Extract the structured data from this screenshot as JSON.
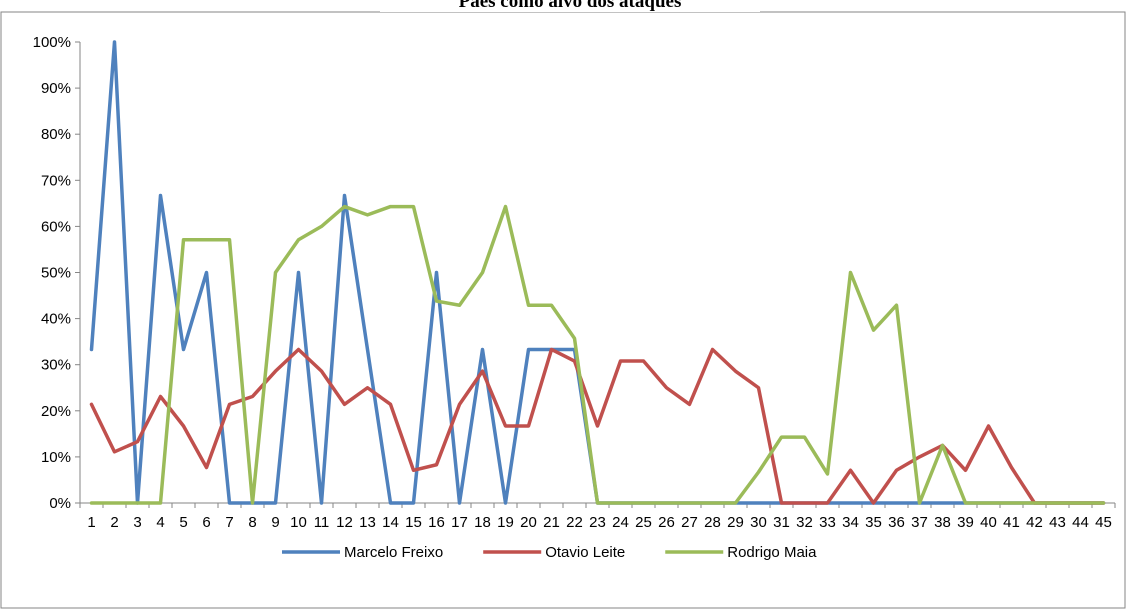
{
  "chart_data": {
    "type": "line",
    "title": "Paes como alvo dos ataques",
    "xlabel": "",
    "ylabel": "",
    "ylim": [
      0,
      1
    ],
    "y_ticks": [
      "0%",
      "10%",
      "20%",
      "30%",
      "40%",
      "50%",
      "60%",
      "70%",
      "80%",
      "90%",
      "100%"
    ],
    "categories": [
      "1",
      "2",
      "3",
      "4",
      "5",
      "6",
      "7",
      "8",
      "9",
      "10",
      "11",
      "12",
      "13",
      "14",
      "15",
      "16",
      "17",
      "18",
      "19",
      "20",
      "21",
      "22",
      "23",
      "24",
      "25",
      "26",
      "27",
      "28",
      "29",
      "30",
      "31",
      "32",
      "33",
      "34",
      "35",
      "36",
      "37",
      "38",
      "39",
      "40",
      "41",
      "42",
      "43",
      "44",
      "45"
    ],
    "grid": false,
    "legend_position": "bottom",
    "series": [
      {
        "name": "Marcelo Freixo",
        "color": "#4F81BD",
        "values": [
          0.333,
          1.0,
          0,
          0.667,
          0.333,
          0.5,
          0,
          0,
          0,
          0.5,
          0,
          0.667,
          0.333,
          0,
          0,
          0.5,
          0,
          0.333,
          0,
          0.333,
          0.333,
          0.333,
          0,
          0,
          0,
          0,
          0,
          0,
          0,
          0,
          0,
          0,
          0,
          0,
          0,
          0,
          0,
          0,
          0,
          0,
          0,
          0,
          0,
          0,
          0
        ]
      },
      {
        "name": "Otavio Leite",
        "color": "#C0504D",
        "values": [
          0.214,
          0.111,
          0.133,
          0.231,
          0.167,
          0.077,
          0.214,
          0.231,
          0.286,
          0.333,
          0.286,
          0.214,
          0.25,
          0.214,
          0.071,
          0.083,
          0.214,
          0.286,
          0.167,
          0.167,
          0.333,
          0.308,
          0.167,
          0.308,
          0.308,
          0.25,
          0.214,
          0.333,
          0.286,
          0.25,
          0,
          0,
          0,
          0.071,
          0,
          0.071,
          0.1,
          0.125,
          0.071,
          0.167,
          0.077,
          0,
          0,
          0,
          0
        ]
      },
      {
        "name": "Rodrigo Maia",
        "color": "#9BBB59",
        "values": [
          0,
          0,
          0,
          0,
          0.571,
          0.571,
          0.571,
          0,
          0.5,
          0.571,
          0.6,
          0.643,
          0.625,
          0.643,
          0.643,
          0.438,
          0.429,
          0.5,
          0.643,
          0.429,
          0.429,
          0.357,
          0,
          0,
          0,
          0,
          0,
          0,
          0,
          0.067,
          0.143,
          0.143,
          0.063,
          0.5,
          0.375,
          0.429,
          0,
          0.125,
          0,
          0,
          0,
          0,
          0,
          0,
          0
        ]
      }
    ]
  }
}
